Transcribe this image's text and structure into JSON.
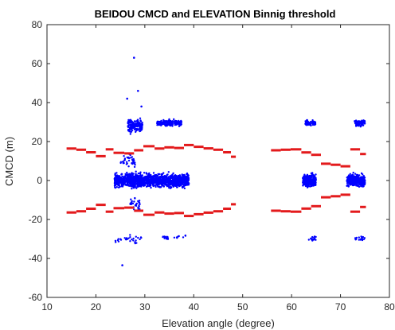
{
  "chart_data": {
    "type": "scatter",
    "title": "BEIDOU CMCD and ELEVATION Binnig threshold",
    "xlabel": "Elevation angle (degree)",
    "ylabel": "CMCD (m)",
    "xlim": [
      10,
      80
    ],
    "ylim": [
      -60,
      80
    ],
    "xticks": [
      "10",
      "20",
      "30",
      "40",
      "50",
      "60",
      "70",
      "80"
    ],
    "yticks": [
      "-60",
      "-40",
      "-20",
      "0",
      "20",
      "40",
      "60",
      "80"
    ],
    "grid": false,
    "legend": "none",
    "colors": {
      "cmcd": "#0000ff",
      "threshold": "#e31a1c",
      "axes": "#262626"
    },
    "series": [
      {
        "kind": "point-clusters",
        "color": "#0000ff",
        "clusters": [
          {
            "x": [
              23.8,
              39.0
            ],
            "y_center": 0,
            "y_spread": 7,
            "count": 1400
          },
          {
            "x": [
              26.5,
              29.5
            ],
            "y_center": 28,
            "y_spread": 7,
            "count": 170
          },
          {
            "x": [
              32.5,
              37.5
            ],
            "y_center": 29.5,
            "y_spread": 3,
            "count": 180
          },
          {
            "x": [
              25.0,
              28.0
            ],
            "y_center": 10,
            "y_spread": 8,
            "count": 40
          },
          {
            "x": [
              27.0,
              29.0
            ],
            "y_center": -12,
            "y_spread": 8,
            "count": 30
          },
          {
            "x": [
              24.0,
              30.0
            ],
            "y_center": -30,
            "y_spread": 4,
            "count": 28
          },
          {
            "x": [
              33.5,
              35.0
            ],
            "y_center": -29.5,
            "y_spread": 2.5,
            "count": 18
          },
          {
            "x": [
              36.0,
              38.5
            ],
            "y_center": -29,
            "y_spread": 2,
            "count": 8
          },
          {
            "x": [
              62.3,
              65.0
            ],
            "y_center": 0,
            "y_spread": 6,
            "count": 380
          },
          {
            "x": [
              62.8,
              65.0
            ],
            "y_center": 29.5,
            "y_spread": 3,
            "count": 90
          },
          {
            "x": [
              63.5,
              65.0
            ],
            "y_center": -30,
            "y_spread": 2.5,
            "count": 18
          },
          {
            "x": [
              71.3,
              75.0
            ],
            "y_center": 0,
            "y_spread": 6,
            "count": 420
          },
          {
            "x": [
              72.8,
              75.0
            ],
            "y_center": 29.5,
            "y_spread": 3,
            "count": 90
          },
          {
            "x": [
              72.8,
              75.0
            ],
            "y_center": -30,
            "y_spread": 2.5,
            "count": 18
          }
        ],
        "outliers": [
          {
            "x": 27.8,
            "y": 63
          },
          {
            "x": 28.6,
            "y": 46
          },
          {
            "x": 26.4,
            "y": 42
          },
          {
            "x": 25.4,
            "y": -43.5
          },
          {
            "x": 29.3,
            "y": 38
          }
        ]
      },
      {
        "kind": "threshold-segments",
        "color": "#e31a1c",
        "bins": [
          {
            "x": [
              14.0,
              16.0
            ],
            "y": 16.4
          },
          {
            "x": [
              16.0,
              18.0
            ],
            "y": 15.8
          },
          {
            "x": [
              18.0,
              20.0
            ],
            "y": 14.5
          },
          {
            "x": [
              20.0,
              22.0
            ],
            "y": 12.5
          },
          {
            "x": [
              22.0,
              23.6
            ],
            "y": 16.0
          },
          {
            "x": [
              23.6,
              25.8
            ],
            "y": 14.2
          },
          {
            "x": [
              25.8,
              27.8
            ],
            "y": 13.9
          },
          {
            "x": [
              27.8,
              29.7
            ],
            "y": 15.5
          },
          {
            "x": [
              29.7,
              32.0
            ],
            "y": 17.6
          },
          {
            "x": [
              32.0,
              34.0
            ],
            "y": 16.4
          },
          {
            "x": [
              34.0,
              36.0
            ],
            "y": 17.0
          },
          {
            "x": [
              36.0,
              38.0
            ],
            "y": 16.7
          },
          {
            "x": [
              38.0,
              40.0
            ],
            "y": 18.2
          },
          {
            "x": [
              40.0,
              42.0
            ],
            "y": 17.3
          },
          {
            "x": [
              42.0,
              44.0
            ],
            "y": 16.5
          },
          {
            "x": [
              44.0,
              46.0
            ],
            "y": 15.8
          },
          {
            "x": [
              46.0,
              47.6
            ],
            "y": 14.5
          },
          {
            "x": [
              47.6,
              48.6
            ],
            "y": 12.2
          },
          {
            "x": [
              55.8,
              57.8
            ],
            "y": 15.5
          },
          {
            "x": [
              57.8,
              59.8
            ],
            "y": 15.8
          },
          {
            "x": [
              59.8,
              62.0
            ],
            "y": 16.0
          },
          {
            "x": [
              62.0,
              64.0
            ],
            "y": 14.4
          },
          {
            "x": [
              64.0,
              66.0
            ],
            "y": 13.2
          },
          {
            "x": [
              66.0,
              68.0
            ],
            "y": 8.6
          },
          {
            "x": [
              68.0,
              70.0
            ],
            "y": 8.1
          },
          {
            "x": [
              70.0,
              72.0
            ],
            "y": 7.3
          },
          {
            "x": [
              72.0,
              74.0
            ],
            "y": 16.0
          },
          {
            "x": [
              74.0,
              75.2
            ],
            "y": 13.6
          }
        ]
      }
    ]
  }
}
